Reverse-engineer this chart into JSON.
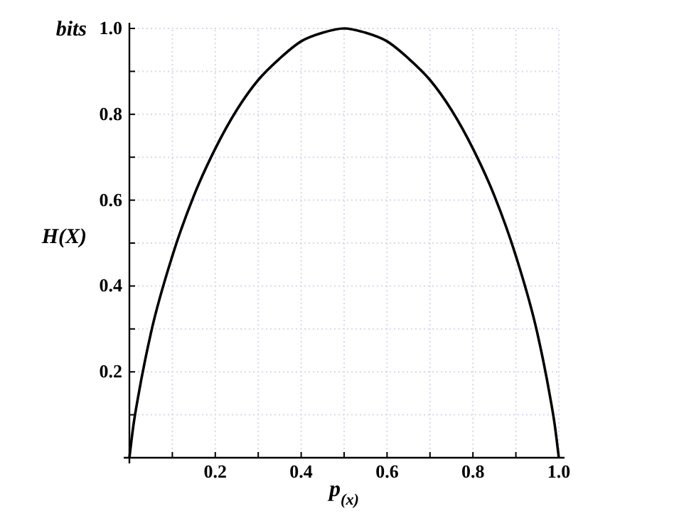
{
  "chart_data": {
    "type": "line",
    "xlabel": "p$_{(x)}$",
    "ylabel": "H(X)",
    "annotations": [
      "bits"
    ],
    "x": [
      0,
      0.01,
      0.02,
      0.05,
      0.1,
      0.15,
      0.2,
      0.25,
      0.3,
      0.35,
      0.4,
      0.45,
      0.5,
      0.55,
      0.6,
      0.65,
      0.7,
      0.75,
      0.8,
      0.85,
      0.9,
      0.95,
      0.98,
      0.99,
      1
    ],
    "series": [
      {
        "color": "#000000",
        "values": [
          0,
          0.08,
          0.14,
          0.29,
          0.47,
          0.61,
          0.72,
          0.81,
          0.88,
          0.93,
          0.97,
          0.99,
          1,
          0.99,
          0.97,
          0.93,
          0.88,
          0.81,
          0.72,
          0.61,
          0.47,
          0.29,
          0.14,
          0.08,
          0
        ]
      }
    ],
    "xlim": [
      0,
      1
    ],
    "ylim": [
      0,
      1
    ],
    "xticks": [
      {
        "value": 0,
        "label": null
      },
      {
        "value": 0.1,
        "label": null
      },
      0.2,
      {
        "value": 0.3,
        "label": null
      },
      0.4,
      {
        "value": 0.5,
        "label": null
      },
      0.6,
      {
        "value": 0.7,
        "label": null
      },
      0.8,
      {
        "value": 0.9,
        "label": null
      },
      {
        "value": 1,
        "label": "1.0"
      }
    ],
    "yticks": [
      {
        "value": 0,
        "label": null
      },
      {
        "value": 0.1,
        "label": null
      },
      0.2,
      {
        "value": 0.3,
        "label": null
      },
      0.4,
      {
        "value": 0.5,
        "label": null
      },
      0.6,
      {
        "value": 0.7,
        "label": null
      },
      0.8,
      {
        "value": 0.9,
        "label": null
      },
      {
        "value": 1,
        "label": "1.0"
      }
    ],
    "grid": true,
    "line_style": "solid",
    "marker": "none"
  }
}
